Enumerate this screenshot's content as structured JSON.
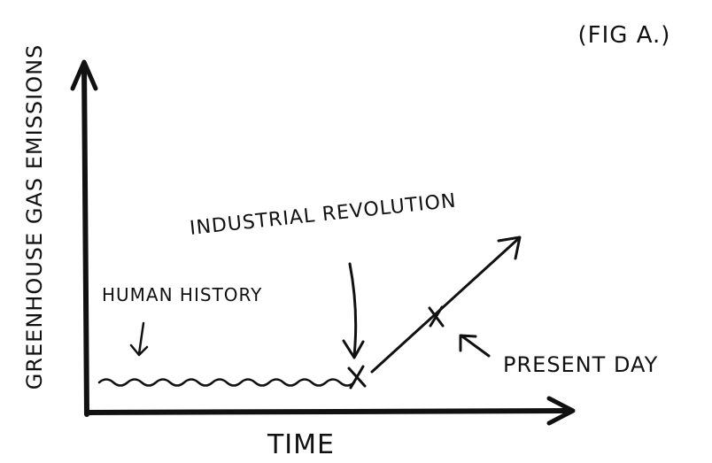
{
  "figure_label": "(FIG A.)",
  "y_axis_label": "GREENHOUSE GAS EMISSIONS",
  "x_axis_label": "TIME",
  "annotations": [
    "HUMAN HISTORY",
    "INDUSTRIAL REVOLUTION",
    "PRESENT DAY"
  ]
}
